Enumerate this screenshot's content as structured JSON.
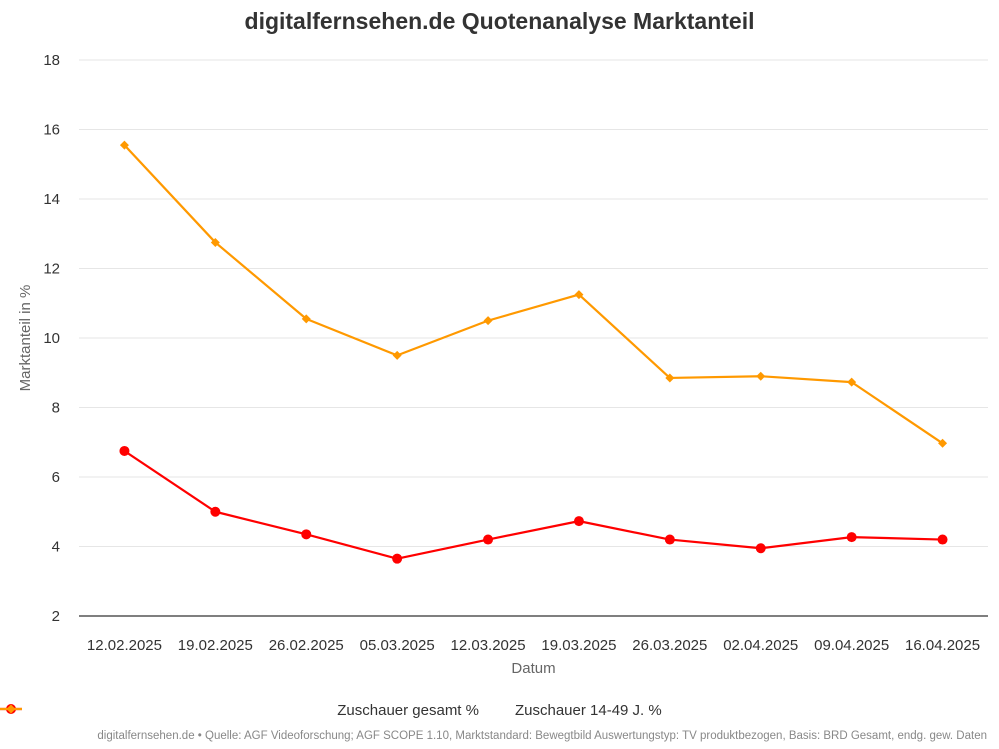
{
  "chart_data": {
    "type": "line",
    "title": "digitalfernsehen.de Quotenanalyse Marktanteil",
    "xlabel": "Datum",
    "ylabel": "Marktanteil in %",
    "ylim": [
      2,
      18
    ],
    "yticks": [
      2,
      4,
      6,
      8,
      10,
      12,
      14,
      16,
      18
    ],
    "grid": true,
    "legend_position": "bottom",
    "categories": [
      "12.02.2025",
      "19.02.2025",
      "26.02.2025",
      "05.03.2025",
      "12.03.2025",
      "19.03.2025",
      "26.03.2025",
      "02.04.2025",
      "09.04.2025",
      "16.04.2025"
    ],
    "series": [
      {
        "name": "Zuschauer gesamt %",
        "color": "#ff0000",
        "marker": "circle",
        "values": [
          6.75,
          5.0,
          4.35,
          3.65,
          4.2,
          4.73,
          4.2,
          3.95,
          4.27,
          4.2
        ]
      },
      {
        "name": "Zuschauer 14-49 J. %",
        "color": "#ff9900",
        "marker": "diamond",
        "values": [
          15.55,
          12.75,
          10.55,
          9.5,
          10.5,
          11.25,
          8.85,
          8.9,
          8.73,
          6.97
        ]
      }
    ]
  },
  "footer": "digitalfernsehen.de • Quelle: AGF Videoforschung; AGF SCOPE 1.10, Marktstandard: Bewegtbild Auswertungstyp: TV produktbezogen, Basis: BRD Gesamt, endg. gew. Daten"
}
